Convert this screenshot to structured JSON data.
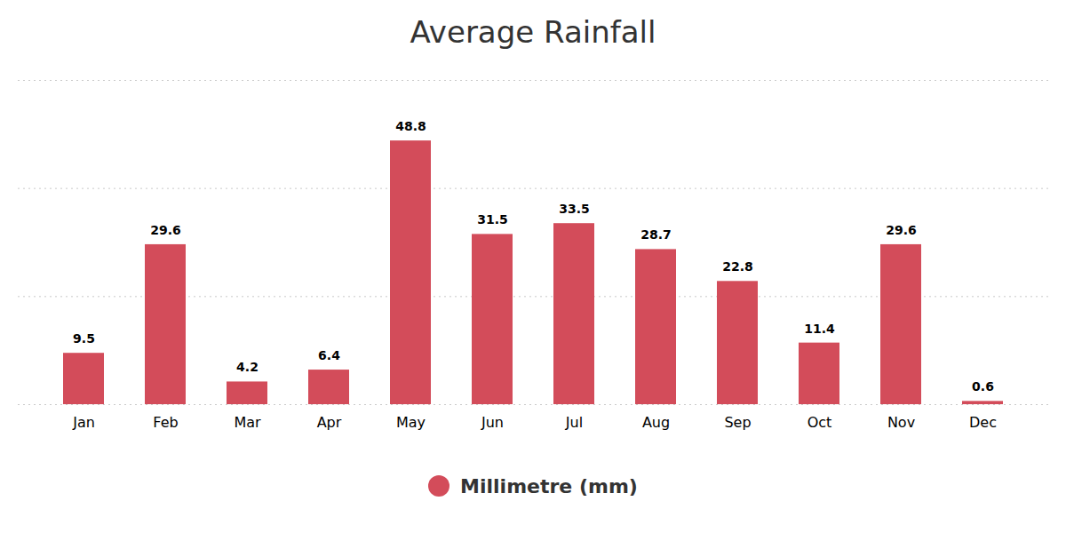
{
  "chart_data": {
    "type": "bar",
    "title": "Average Rainfall",
    "categories": [
      "Jan",
      "Feb",
      "Mar",
      "Apr",
      "May",
      "Jun",
      "Jul",
      "Aug",
      "Sep",
      "Oct",
      "Nov",
      "Dec"
    ],
    "series": [
      {
        "name": "Millimetre (mm)",
        "color": "#d34c5a",
        "values": [
          9.5,
          29.6,
          4.2,
          6.4,
          48.8,
          31.5,
          33.5,
          28.7,
          22.8,
          11.4,
          29.6,
          0.6
        ]
      }
    ],
    "ylim": [
      0,
      60
    ],
    "yticks": [
      0,
      20,
      40,
      60
    ],
    "grid": true,
    "legend": "bottom",
    "data_labels": true,
    "tick_labels": "x"
  }
}
